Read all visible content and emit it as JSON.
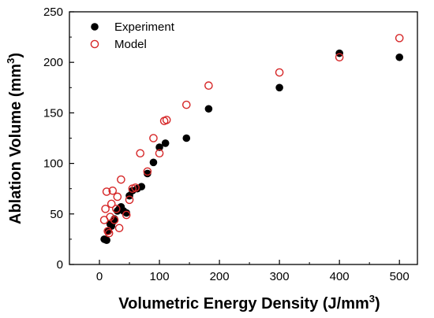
{
  "chart_data": {
    "type": "scatter",
    "xlabel": "Volumetric Energy Density (J/mm",
    "xlabel_sup": "3",
    "xlabel_end": ")",
    "ylabel": "Ablation Volume (mm",
    "ylabel_sup": "3",
    "ylabel_end": ")",
    "xlim": [
      -50,
      530
    ],
    "ylim": [
      0,
      250
    ],
    "xticks": [
      0,
      100,
      200,
      300,
      400,
      500
    ],
    "yticks": [
      0,
      50,
      100,
      150,
      200,
      250
    ],
    "legend_position": "top-left",
    "grid": false,
    "series": [
      {
        "name": "Experiment",
        "marker": "filled-circle",
        "color": "#000000",
        "points": [
          [
            8,
            25
          ],
          [
            12,
            24
          ],
          [
            15,
            33
          ],
          [
            18,
            40
          ],
          [
            20,
            38
          ],
          [
            22,
            42
          ],
          [
            25,
            45
          ],
          [
            30,
            53
          ],
          [
            33,
            55
          ],
          [
            36,
            57
          ],
          [
            40,
            53
          ],
          [
            45,
            51
          ],
          [
            50,
            68
          ],
          [
            55,
            73
          ],
          [
            63,
            75
          ],
          [
            70,
            77
          ],
          [
            80,
            90
          ],
          [
            90,
            101
          ],
          [
            100,
            116
          ],
          [
            110,
            120
          ],
          [
            145,
            125
          ],
          [
            182,
            154
          ],
          [
            300,
            175
          ],
          [
            400,
            209
          ],
          [
            500,
            205
          ]
        ]
      },
      {
        "name": "Model",
        "marker": "open-circle",
        "color": "#d62728",
        "points": [
          [
            8,
            44
          ],
          [
            10,
            55
          ],
          [
            12,
            72
          ],
          [
            14,
            33
          ],
          [
            16,
            31
          ],
          [
            18,
            47
          ],
          [
            20,
            60
          ],
          [
            22,
            73
          ],
          [
            25,
            44
          ],
          [
            28,
            55
          ],
          [
            30,
            67
          ],
          [
            33,
            36
          ],
          [
            36,
            84
          ],
          [
            45,
            49
          ],
          [
            50,
            64
          ],
          [
            55,
            75
          ],
          [
            60,
            76
          ],
          [
            68,
            110
          ],
          [
            80,
            92
          ],
          [
            90,
            125
          ],
          [
            100,
            110
          ],
          [
            108,
            142
          ],
          [
            112,
            143
          ],
          [
            145,
            158
          ],
          [
            182,
            177
          ],
          [
            300,
            190
          ],
          [
            400,
            205
          ],
          [
            500,
            224
          ]
        ]
      }
    ]
  }
}
